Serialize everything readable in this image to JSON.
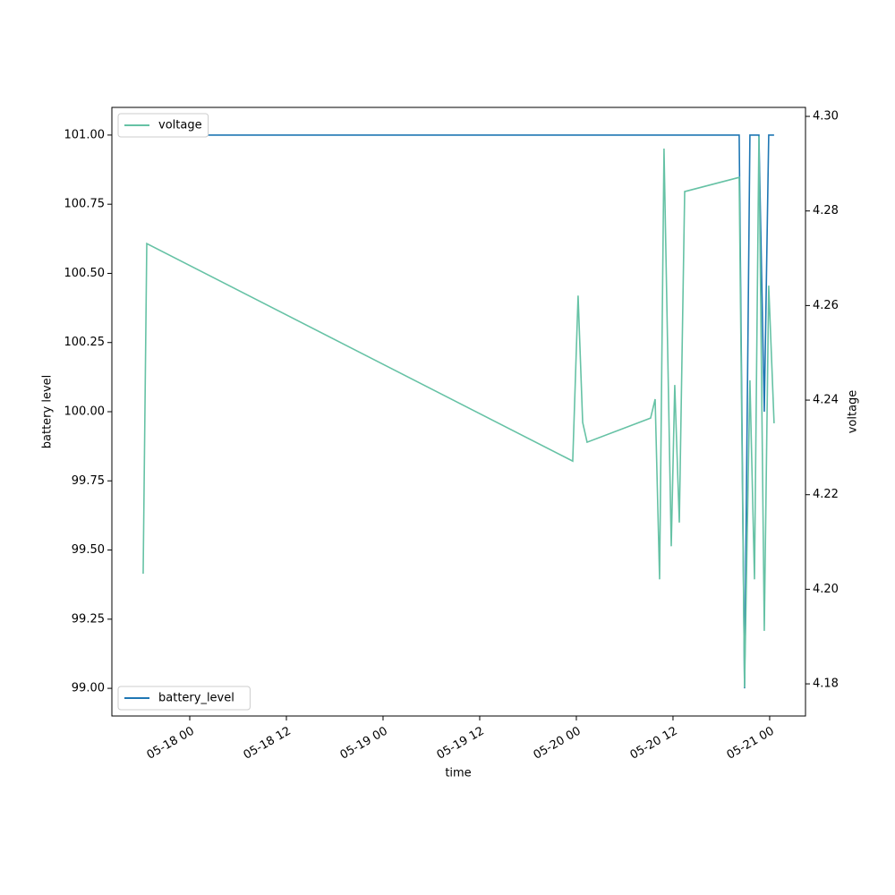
{
  "chart_data": {
    "type": "line",
    "xlabel": "time",
    "ylabel": "battery level",
    "y2label": "voltage",
    "x": [
      "05-17 18:13",
      "05-17 18:40",
      "05-19 23:33",
      "05-20 00:13",
      "05-20 00:47",
      "05-20 01:20",
      "05-20 09:13",
      "05-20 09:47",
      "05-20 10:20",
      "05-20 10:53",
      "05-20 11:47",
      "05-20 12:13",
      "05-20 12:47",
      "05-20 13:27",
      "05-20 20:13",
      "05-20 20:53",
      "05-20 21:33",
      "05-20 22:07",
      "05-20 22:40",
      "05-20 23:20",
      "05-20 23:53",
      "05-21 00:33"
    ],
    "series": [
      {
        "name": "battery_level",
        "color": "#1f77b4",
        "axis": "y",
        "legend": "lower left",
        "values": [
          101,
          101,
          101,
          101,
          101,
          101,
          101,
          101,
          101,
          101,
          101,
          101,
          101,
          101,
          101,
          99,
          101,
          101,
          101,
          100,
          101,
          101
        ]
      },
      {
        "name": "voltage",
        "color": "#66c2a5",
        "axis": "y2",
        "legend": "upper left",
        "values": [
          4.2033,
          4.2731,
          4.2271,
          4.2621,
          4.2353,
          4.2311,
          4.2362,
          4.2402,
          4.2021,
          4.2932,
          4.2091,
          4.2432,
          4.2141,
          4.2841,
          4.2871,
          4.1792,
          4.2442,
          4.2021,
          4.2958,
          4.1912,
          4.2642,
          4.2351
        ]
      }
    ],
    "xlim": [
      "05-17 14:20",
      "05-21 04:27"
    ],
    "xticks": [
      "05-18 00",
      "05-18 12",
      "05-19 00",
      "05-19 12",
      "05-20 00",
      "05-20 12",
      "05-21 00"
    ],
    "ylim": [
      98.9,
      101.1
    ],
    "yticks": [
      {
        "value": 99,
        "label": "99.00"
      },
      {
        "value": 99.25,
        "label": "99.25"
      },
      {
        "value": 99.5,
        "label": "99.50"
      },
      {
        "value": 99.75,
        "label": "99.75"
      },
      {
        "value": 100,
        "label": "100.00"
      },
      {
        "value": 100.25,
        "label": "100.25"
      },
      {
        "value": 100.5,
        "label": "100.50"
      },
      {
        "value": 100.75,
        "label": "100.75"
      },
      {
        "value": 101,
        "label": "101.00"
      }
    ],
    "y2lim": [
      4.1732,
      4.3019
    ],
    "y2ticks": [
      4.18,
      {
        "value": 4.2,
        "label": "4.20"
      },
      4.22,
      4.24,
      4.26,
      4.28,
      {
        "value": 4.3,
        "label": "4.30"
      }
    ],
    "grid": false
  }
}
